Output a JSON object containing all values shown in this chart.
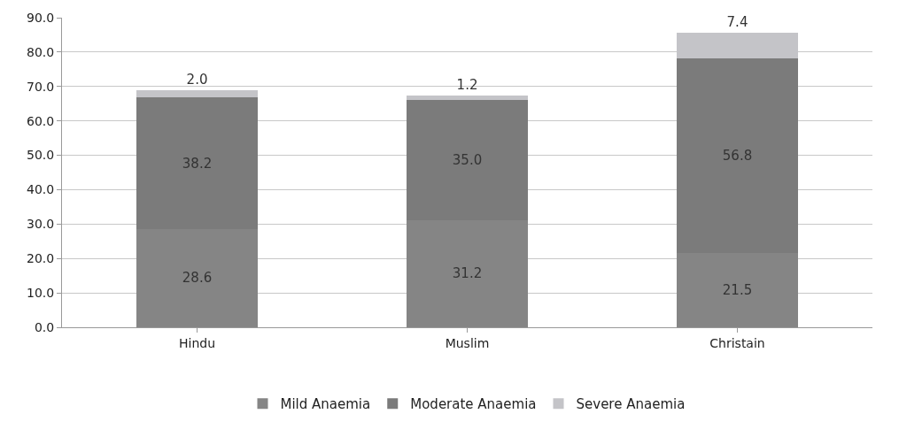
{
  "chart_data": {
    "type": "bar",
    "stacked": true,
    "categories": [
      "Hindu",
      "Muslim",
      "Christain"
    ],
    "series": [
      {
        "name": "Mild Anaemia",
        "color": "#858585",
        "values": [
          28.6,
          31.2,
          21.5
        ],
        "value_labels": [
          "28.6",
          "31.2",
          "21.5"
        ]
      },
      {
        "name": "Moderate Anaemia",
        "color": "#7b7b7b",
        "values": [
          38.2,
          35.0,
          56.8
        ],
        "value_labels": [
          "38.2",
          "35.0",
          "56.8"
        ]
      },
      {
        "name": "Severe Anaemia",
        "color": "#c4c4c8",
        "values": [
          2.0,
          1.2,
          7.4
        ],
        "value_labels": [
          "2.0",
          "1.2",
          "7.4"
        ]
      }
    ],
    "ylim": [
      0,
      90
    ],
    "yticks": [
      {
        "value": 0,
        "label": "0.0"
      },
      {
        "value": 10,
        "label": "10.0"
      },
      {
        "value": 20,
        "label": "20.0"
      },
      {
        "value": 30,
        "label": "30.0"
      },
      {
        "value": 40,
        "label": "40.0"
      },
      {
        "value": 50,
        "label": "50.0"
      },
      {
        "value": 60,
        "label": "60.0"
      },
      {
        "value": 70,
        "label": "70.0"
      },
      {
        "value": 80,
        "label": "80.0"
      },
      {
        "value": 90,
        "label": "90.0"
      }
    ],
    "grid": "y",
    "legend": "bottom"
  }
}
